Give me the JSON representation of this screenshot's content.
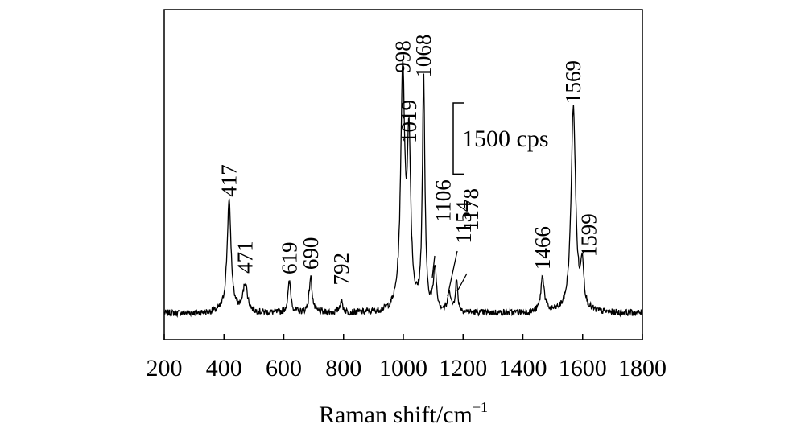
{
  "chart_data": {
    "type": "line",
    "title": "",
    "xlabel": "Raman shift/cm",
    "xlabel_sup": "−1",
    "ylabel": "",
    "xlim": [
      200,
      1800
    ],
    "ylim": [
      0,
      6000
    ],
    "x_ticks": [
      200,
      400,
      600,
      800,
      1000,
      1200,
      1400,
      1600,
      1800
    ],
    "x_tick_labels": [
      "200",
      "400",
      "600",
      "800",
      "1000",
      "1200",
      "1400",
      "1600",
      "1800"
    ],
    "grid": false,
    "legend": "none",
    "line_color": "#000000",
    "baseline": 250,
    "noise_amplitude": 70,
    "scale_bar": {
      "label": "1500 cps",
      "value": 1500
    },
    "peaks": [
      {
        "x": 417,
        "y": 2600,
        "label": "417"
      },
      {
        "x": 471,
        "y": 850,
        "label": "471"
      },
      {
        "x": 619,
        "y": 900,
        "label": "619"
      },
      {
        "x": 690,
        "y": 1000,
        "label": "690"
      },
      {
        "x": 792,
        "y": 500,
        "label": "792"
      },
      {
        "x": 998,
        "y": 5250,
        "label": "998"
      },
      {
        "x": 1019,
        "y": 3700,
        "label": "1019"
      },
      {
        "x": 1068,
        "y": 5150,
        "label": "1068"
      },
      {
        "x": 1106,
        "y": 1150,
        "label": "1106"
      },
      {
        "x": 1154,
        "y": 700,
        "label": "1154"
      },
      {
        "x": 1178,
        "y": 900,
        "label": "1178"
      },
      {
        "x": 1466,
        "y": 1000,
        "label": "1466"
      },
      {
        "x": 1569,
        "y": 4600,
        "label": "1569"
      },
      {
        "x": 1599,
        "y": 1200,
        "label": "1599"
      }
    ]
  }
}
